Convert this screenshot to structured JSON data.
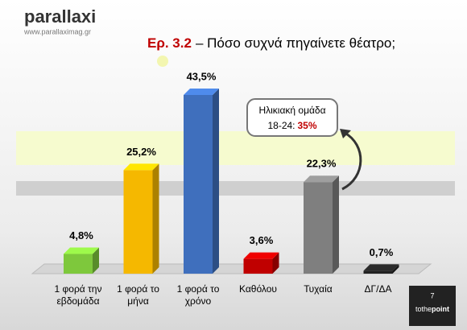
{
  "branding": {
    "logo": "parallaxi",
    "url": "www.parallaximag.gr",
    "badge_number": "7",
    "badge_to": "tothe",
    "badge_point": "point"
  },
  "chart_data": {
    "type": "bar",
    "title_number": "Ερ. 3.2",
    "title": "– Πόσο συχνά πηγαίνετε θέατρο;",
    "categories": [
      "1 φορά την εβδομάδα",
      "1 φορά το μήνα",
      "1 φορά το χρόνο",
      "Καθόλου",
      "Τυχαία",
      "ΔΓ/ΔΑ"
    ],
    "values": [
      4.8,
      25.2,
      43.5,
      3.6,
      22.3,
      0.7
    ],
    "value_labels": [
      "4,8%",
      "25,2%",
      "43,5%",
      "3,6%",
      "22,3%",
      "0,7%"
    ],
    "colors": [
      "#7ec83c",
      "#f5b800",
      "#3f6fbd",
      "#c00000",
      "#7f7f7f",
      "#222222"
    ],
    "annotation": {
      "line1": "Ηλικιακή ομάδα",
      "line2_label": "18-24:",
      "line2_value": "35%"
    }
  }
}
